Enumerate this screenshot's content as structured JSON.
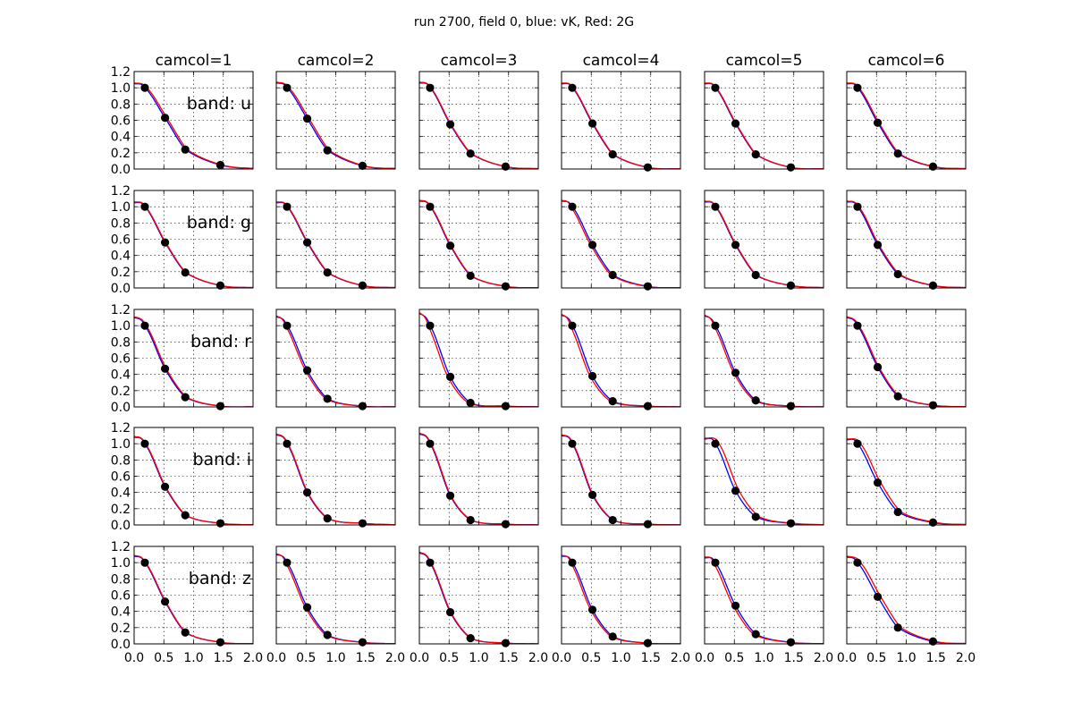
{
  "suptitle": "run 2700, field 0, blue: vK, Red: 2G",
  "column_titles": [
    "camcol=1",
    "camcol=2",
    "camcol=3",
    "camcol=4",
    "camcol=5",
    "camcol=6"
  ],
  "row_labels": [
    "band: u",
    "band: g",
    "band: r",
    "band: i",
    "band: z"
  ],
  "colors": {
    "blue": "#0000ff",
    "red": "#ff0000",
    "points": "#000000",
    "grid": "#000000"
  },
  "chart_data": {
    "type": "line",
    "layout": "small-multiples grid, 5 rows x 6 columns",
    "xlim": [
      0.0,
      2.0
    ],
    "ylim": [
      0.0,
      1.2
    ],
    "x_ticks": [
      "0.0",
      "0.5",
      "1.0",
      "1.5",
      "2.0"
    ],
    "y_ticks": [
      "0.0",
      "0.2",
      "0.4",
      "0.6",
      "0.8",
      "1.0",
      "1.2"
    ],
    "grid": true,
    "point_x": [
      0.18,
      0.52,
      0.86,
      1.45
    ],
    "series_legend": {
      "blue": "vK",
      "red": "2G"
    },
    "panels": [
      [
        {
          "points": [
            1.0,
            0.63,
            0.24,
            0.05
          ],
          "blue_y0": 1.05,
          "red_y0": 1.06,
          "red_shift": 0.03
        },
        {
          "points": [
            1.0,
            0.62,
            0.23,
            0.04
          ],
          "blue_y0": 1.06,
          "red_y0": 1.07,
          "red_shift": 0.03
        },
        {
          "points": [
            1.0,
            0.55,
            0.19,
            0.03
          ],
          "blue_y0": 1.06,
          "red_y0": 1.07,
          "red_shift": 0.01
        },
        {
          "points": [
            1.0,
            0.56,
            0.18,
            0.02
          ],
          "blue_y0": 1.05,
          "red_y0": 1.06,
          "red_shift": 0.01
        },
        {
          "points": [
            1.0,
            0.56,
            0.18,
            0.02
          ],
          "blue_y0": 1.05,
          "red_y0": 1.06,
          "red_shift": 0.01
        },
        {
          "points": [
            1.0,
            0.57,
            0.19,
            0.03
          ],
          "blue_y0": 1.05,
          "red_y0": 1.06,
          "red_shift": 0.02
        }
      ],
      [
        {
          "points": [
            1.0,
            0.56,
            0.19,
            0.03
          ],
          "blue_y0": 1.05,
          "red_y0": 1.06,
          "red_shift": 0.01
        },
        {
          "points": [
            1.0,
            0.56,
            0.19,
            0.03
          ],
          "blue_y0": 1.05,
          "red_y0": 1.06,
          "red_shift": 0.01
        },
        {
          "points": [
            1.0,
            0.52,
            0.15,
            0.02
          ],
          "blue_y0": 1.07,
          "red_y0": 1.08,
          "red_shift": 0.01
        },
        {
          "points": [
            1.0,
            0.53,
            0.16,
            0.02
          ],
          "blue_y0": 1.07,
          "red_y0": 1.08,
          "red_shift": -0.03
        },
        {
          "points": [
            1.0,
            0.53,
            0.16,
            0.03
          ],
          "blue_y0": 1.06,
          "red_y0": 1.07,
          "red_shift": 0.01
        },
        {
          "points": [
            1.0,
            0.53,
            0.17,
            0.03
          ],
          "blue_y0": 1.06,
          "red_y0": 1.07,
          "red_shift": 0.02
        }
      ],
      [
        {
          "points": [
            1.0,
            0.47,
            0.12,
            0.01
          ],
          "blue_y0": 1.1,
          "red_y0": 1.11,
          "red_shift": 0.02
        },
        {
          "points": [
            1.0,
            0.45,
            0.1,
            0.01
          ],
          "blue_y0": 1.11,
          "red_y0": 1.12,
          "red_shift": -0.03
        },
        {
          "points": [
            1.0,
            0.37,
            0.05,
            0.01
          ],
          "blue_y0": 1.15,
          "red_y0": 1.16,
          "red_shift": -0.04
        },
        {
          "points": [
            1.0,
            0.38,
            0.07,
            0.01
          ],
          "blue_y0": 1.13,
          "red_y0": 1.14,
          "red_shift": -0.04
        },
        {
          "points": [
            1.0,
            0.42,
            0.08,
            0.01
          ],
          "blue_y0": 1.12,
          "red_y0": 1.13,
          "red_shift": -0.03
        },
        {
          "points": [
            1.0,
            0.49,
            0.13,
            0.02
          ],
          "blue_y0": 1.1,
          "red_y0": 1.11,
          "red_shift": 0.02
        }
      ],
      [
        {
          "points": [
            1.0,
            0.47,
            0.12,
            0.02
          ],
          "blue_y0": 1.08,
          "red_y0": 1.09,
          "red_shift": 0.01
        },
        {
          "points": [
            1.0,
            0.4,
            0.08,
            0.02
          ],
          "blue_y0": 1.11,
          "red_y0": 1.12,
          "red_shift": 0.01
        },
        {
          "points": [
            1.0,
            0.36,
            0.06,
            0.01
          ],
          "blue_y0": 1.12,
          "red_y0": 1.13,
          "red_shift": 0.01
        },
        {
          "points": [
            1.0,
            0.37,
            0.06,
            0.01
          ],
          "blue_y0": 1.1,
          "red_y0": 1.11,
          "red_shift": 0.01
        },
        {
          "points": [
            1.0,
            0.42,
            0.1,
            0.02
          ],
          "blue_y0": 1.06,
          "red_y0": 1.07,
          "red_shift": 0.06
        },
        {
          "points": [
            1.0,
            0.52,
            0.16,
            0.03
          ],
          "blue_y0": 1.05,
          "red_y0": 1.06,
          "red_shift": 0.05
        }
      ],
      [
        {
          "points": [
            1.0,
            0.52,
            0.14,
            0.02
          ],
          "blue_y0": 1.08,
          "red_y0": 1.09,
          "red_shift": 0.01
        },
        {
          "points": [
            1.0,
            0.45,
            0.11,
            0.02
          ],
          "blue_y0": 1.1,
          "red_y0": 1.11,
          "red_shift": -0.03
        },
        {
          "points": [
            1.0,
            0.39,
            0.07,
            0.01
          ],
          "blue_y0": 1.12,
          "red_y0": 1.13,
          "red_shift": 0.01
        },
        {
          "points": [
            1.0,
            0.42,
            0.09,
            0.01
          ],
          "blue_y0": 1.08,
          "red_y0": 1.09,
          "red_shift": -0.03
        },
        {
          "points": [
            1.0,
            0.47,
            0.12,
            0.02
          ],
          "blue_y0": 1.06,
          "red_y0": 1.07,
          "red_shift": -0.04
        },
        {
          "points": [
            1.0,
            0.58,
            0.2,
            0.03
          ],
          "blue_y0": 1.07,
          "red_y0": 1.08,
          "red_shift": 0.05
        }
      ]
    ]
  }
}
